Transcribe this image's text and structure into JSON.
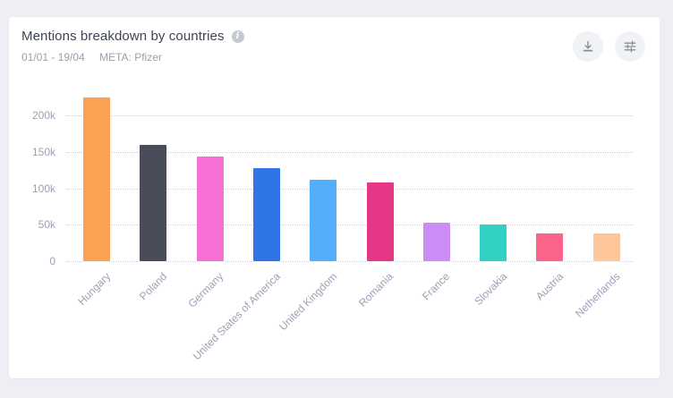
{
  "page": {
    "background_color": "#EDEFF4",
    "card_background": "#FFFFFF"
  },
  "header": {
    "title": "Mentions breakdown by countries",
    "info_icon": "info-icon",
    "date_range": "01/01 - 19/04",
    "meta": "META: Pfizer",
    "buttons": [
      {
        "name": "download",
        "icon": "download-icon"
      },
      {
        "name": "settings",
        "icon": "sliders-icon"
      }
    ]
  },
  "chart_data": {
    "type": "bar",
    "title": "Mentions breakdown by countries",
    "categories": [
      "Hungary",
      "Poland",
      "Germany",
      "United States of America",
      "United Kingdom",
      "Romania",
      "France",
      "Slovakia",
      "Austria",
      "Netherlands"
    ],
    "values": [
      225000,
      160000,
      144000,
      127000,
      112000,
      108000,
      53000,
      50000,
      38000,
      38000
    ],
    "bar_colors": [
      "#FAA251",
      "#484D59",
      "#F670D4",
      "#2E75E8",
      "#55AEFB",
      "#E53786",
      "#CB8CF6",
      "#32CFC3",
      "#FB6488",
      "#FEC79B"
    ],
    "ytick_labels": [
      "0",
      "50k",
      "100k",
      "150k",
      "200k"
    ],
    "ytick_values": [
      0,
      50000,
      100000,
      150000,
      200000
    ],
    "ylim": [
      0,
      236000
    ],
    "xlabel": "",
    "ylabel": "",
    "grid": "horizontal-dotted",
    "legend": "none",
    "xtick_rotation": -45,
    "axis_text_color": "#9BA1B5",
    "gridline_color": "#C8CCD6"
  }
}
